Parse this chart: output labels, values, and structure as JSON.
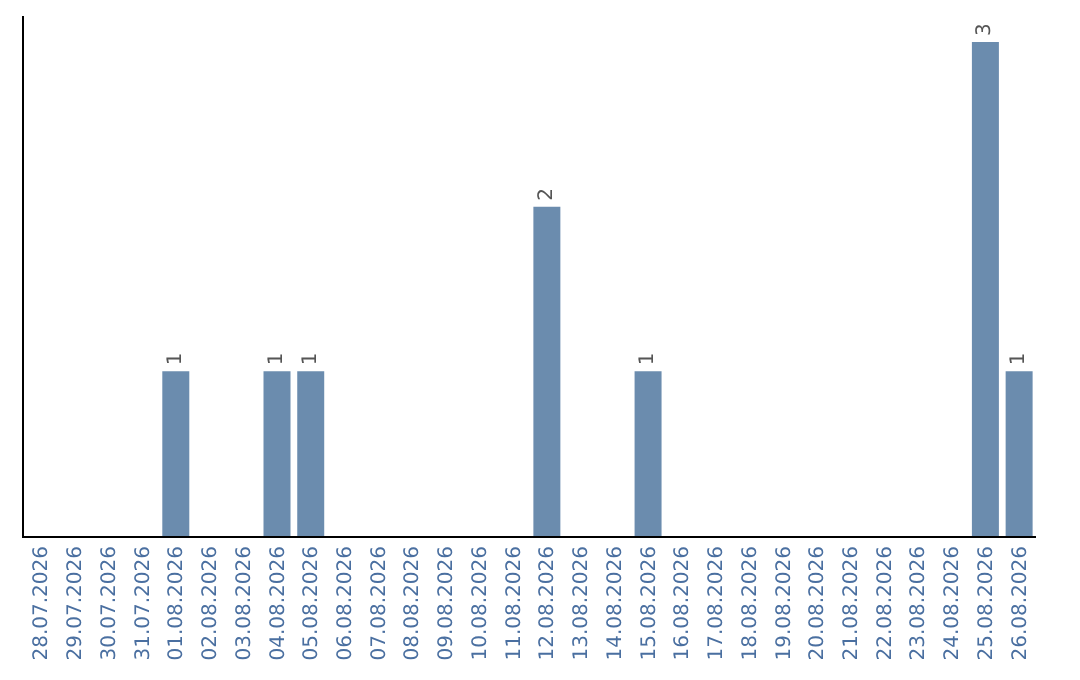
{
  "chart_data": {
    "type": "bar",
    "categories": [
      "28.07.2026",
      "29.07.2026",
      "30.07.2026",
      "31.07.2026",
      "01.08.2026",
      "02.08.2026",
      "03.08.2026",
      "04.08.2026",
      "05.08.2026",
      "06.08.2026",
      "07.08.2026",
      "08.08.2026",
      "09.08.2026",
      "10.08.2026",
      "11.08.2026",
      "12.08.2026",
      "13.08.2026",
      "14.08.2026",
      "15.08.2026",
      "16.08.2026",
      "17.08.2026",
      "18.08.2026",
      "19.08.2026",
      "20.08.2026",
      "21.08.2026",
      "22.08.2026",
      "23.08.2026",
      "24.08.2026",
      "25.08.2026",
      "26.08.2026"
    ],
    "values": [
      0,
      0,
      0,
      0,
      1,
      0,
      0,
      1,
      1,
      0,
      0,
      0,
      0,
      0,
      0,
      2,
      0,
      0,
      1,
      0,
      0,
      0,
      0,
      0,
      0,
      0,
      0,
      0,
      3,
      1
    ],
    "value_labels": [
      null,
      null,
      null,
      null,
      "1",
      null,
      null,
      "1",
      "1",
      null,
      null,
      null,
      null,
      null,
      null,
      "2",
      null,
      null,
      "1",
      null,
      null,
      null,
      null,
      null,
      null,
      null,
      null,
      null,
      "3",
      "1"
    ],
    "color": "#6b8cae",
    "tick_labels": "x",
    "legend": false
  }
}
